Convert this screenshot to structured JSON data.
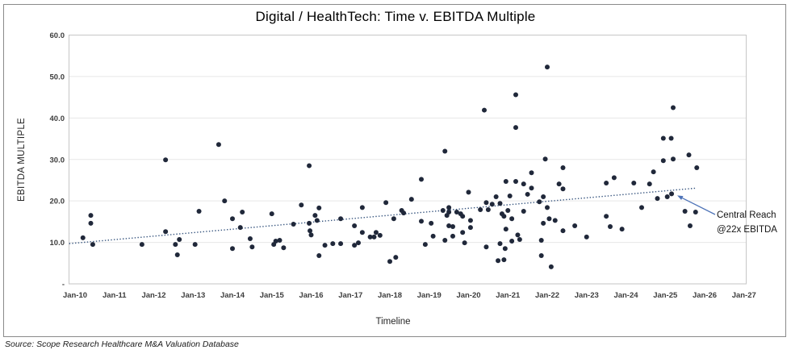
{
  "title": "Digital / HealthTech: Time v. EBITDA Multiple",
  "source": "Source: Scope Research Healthcare M&A Valuation Database",
  "chart_data": {
    "type": "scatter",
    "title": "Digital / HealthTech: Time v. EBITDA Multiple",
    "xlabel": "Timeline",
    "ylabel": "EBITDA MULTIPLE",
    "legend": "none",
    "grid": "horizontal",
    "x_ticks": [
      "Jan-10",
      "Jan-11",
      "Jan-12",
      "Jan-13",
      "Jan-14",
      "Jan-15",
      "Jan-16",
      "Jan-17",
      "Jan-18",
      "Jan-19",
      "Jan-20",
      "Jan-21",
      "Jan-22",
      "Jan-23",
      "Jan-24",
      "Jan-25",
      "Jan-26",
      "Jan-27"
    ],
    "y_ticks": [
      {
        "label": "60.0",
        "value": 60
      },
      {
        "label": "50.0",
        "value": 50
      },
      {
        "label": "40.0",
        "value": 40
      },
      {
        "label": "30.0",
        "value": 30
      },
      {
        "label": "20.0",
        "value": 20
      },
      {
        "label": "10.0",
        "value": 10
      },
      {
        "label": "-",
        "value": 0
      }
    ],
    "ylim": [
      0,
      60
    ],
    "xlim_years": [
      2009.83,
      2027.07
    ],
    "points": [
      [
        2010.2,
        11.1
      ],
      [
        2010.4,
        16.5
      ],
      [
        2010.4,
        14.6
      ],
      [
        2010.45,
        9.5
      ],
      [
        2011.7,
        9.5
      ],
      [
        2012.3,
        29.9
      ],
      [
        2012.3,
        12.6
      ],
      [
        2012.55,
        9.5
      ],
      [
        2012.6,
        7.0
      ],
      [
        2012.65,
        10.7
      ],
      [
        2013.05,
        9.5
      ],
      [
        2013.15,
        17.5
      ],
      [
        2013.65,
        33.6
      ],
      [
        2013.8,
        20.0
      ],
      [
        2014.0,
        15.7
      ],
      [
        2014.0,
        8.5
      ],
      [
        2014.2,
        13.6
      ],
      [
        2014.25,
        17.3
      ],
      [
        2014.45,
        10.9
      ],
      [
        2014.5,
        8.9
      ],
      [
        2015.0,
        16.9
      ],
      [
        2015.05,
        9.5
      ],
      [
        2015.1,
        10.3
      ],
      [
        2015.2,
        10.5
      ],
      [
        2015.3,
        8.7
      ],
      [
        2015.55,
        14.4
      ],
      [
        2015.75,
        19.0
      ],
      [
        2015.95,
        28.5
      ],
      [
        2015.95,
        14.6
      ],
      [
        2015.97,
        12.8
      ],
      [
        2016.0,
        11.8
      ],
      [
        2016.1,
        16.5
      ],
      [
        2016.15,
        15.3
      ],
      [
        2016.2,
        18.3
      ],
      [
        2016.2,
        6.8
      ],
      [
        2016.35,
        9.3
      ],
      [
        2016.55,
        9.7
      ],
      [
        2016.75,
        15.7
      ],
      [
        2016.75,
        9.7
      ],
      [
        2017.1,
        14.0
      ],
      [
        2017.1,
        9.3
      ],
      [
        2017.2,
        9.9
      ],
      [
        2017.3,
        18.4
      ],
      [
        2017.3,
        12.4
      ],
      [
        2017.5,
        11.3
      ],
      [
        2017.6,
        11.3
      ],
      [
        2017.65,
        12.4
      ],
      [
        2017.75,
        11.7
      ],
      [
        2017.9,
        19.6
      ],
      [
        2018.0,
        5.4
      ],
      [
        2018.1,
        15.7
      ],
      [
        2018.15,
        6.4
      ],
      [
        2018.3,
        17.7
      ],
      [
        2018.35,
        17.1
      ],
      [
        2018.55,
        20.4
      ],
      [
        2018.8,
        25.2
      ],
      [
        2018.8,
        15.1
      ],
      [
        2018.9,
        9.5
      ],
      [
        2019.05,
        14.6
      ],
      [
        2019.1,
        11.5
      ],
      [
        2019.35,
        17.7
      ],
      [
        2019.4,
        32.0
      ],
      [
        2019.4,
        10.5
      ],
      [
        2019.45,
        16.5
      ],
      [
        2019.5,
        18.4
      ],
      [
        2019.5,
        14.0
      ],
      [
        2019.5,
        17.3
      ],
      [
        2019.6,
        11.5
      ],
      [
        2019.6,
        13.8
      ],
      [
        2019.7,
        17.3
      ],
      [
        2019.8,
        16.9
      ],
      [
        2019.85,
        16.3
      ],
      [
        2019.85,
        12.4
      ],
      [
        2019.9,
        9.9
      ],
      [
        2020.0,
        22.1
      ],
      [
        2020.05,
        15.3
      ],
      [
        2020.05,
        13.6
      ],
      [
        2020.3,
        17.9
      ],
      [
        2020.4,
        41.9
      ],
      [
        2020.45,
        19.6
      ],
      [
        2020.45,
        8.9
      ],
      [
        2020.5,
        17.9
      ],
      [
        2020.6,
        19.2
      ],
      [
        2020.7,
        21.0
      ],
      [
        2020.75,
        5.6
      ],
      [
        2020.8,
        19.4
      ],
      [
        2020.8,
        9.7
      ],
      [
        2020.85,
        16.9
      ],
      [
        2020.9,
        16.3
      ],
      [
        2020.9,
        5.8
      ],
      [
        2020.93,
        8.5
      ],
      [
        2020.95,
        24.7
      ],
      [
        2020.95,
        13.2
      ],
      [
        2021.0,
        17.7
      ],
      [
        2021.05,
        21.2
      ],
      [
        2021.1,
        15.7
      ],
      [
        2021.1,
        10.3
      ],
      [
        2021.2,
        45.6
      ],
      [
        2021.2,
        37.7
      ],
      [
        2021.2,
        24.7
      ],
      [
        2021.25,
        11.8
      ],
      [
        2021.3,
        10.7
      ],
      [
        2021.4,
        24.1
      ],
      [
        2021.4,
        17.5
      ],
      [
        2021.5,
        21.6
      ],
      [
        2021.6,
        26.8
      ],
      [
        2021.6,
        23.1
      ],
      [
        2021.8,
        19.8
      ],
      [
        2021.85,
        10.5
      ],
      [
        2021.85,
        6.8
      ],
      [
        2021.9,
        21.0
      ],
      [
        2021.9,
        14.6
      ],
      [
        2021.95,
        30.1
      ],
      [
        2022.0,
        52.3
      ],
      [
        2022.0,
        18.4
      ],
      [
        2022.05,
        15.7
      ],
      [
        2022.1,
        4.1
      ],
      [
        2022.2,
        15.3
      ],
      [
        2022.3,
        24.1
      ],
      [
        2022.4,
        28.0
      ],
      [
        2022.4,
        22.9
      ],
      [
        2022.4,
        12.8
      ],
      [
        2022.7,
        14.0
      ],
      [
        2023.0,
        11.3
      ],
      [
        2023.5,
        24.3
      ],
      [
        2023.5,
        16.3
      ],
      [
        2023.6,
        13.8
      ],
      [
        2023.7,
        25.6
      ],
      [
        2023.9,
        13.2
      ],
      [
        2024.2,
        24.3
      ],
      [
        2024.4,
        18.4
      ],
      [
        2024.6,
        24.1
      ],
      [
        2024.7,
        27.0
      ],
      [
        2024.8,
        20.6
      ],
      [
        2024.95,
        35.1
      ],
      [
        2024.95,
        29.7
      ],
      [
        2025.05,
        21.0
      ],
      [
        2025.15,
        35.1
      ],
      [
        2025.16,
        21.7
      ],
      [
        2025.2,
        42.5
      ],
      [
        2025.2,
        30.1
      ],
      [
        2025.5,
        17.5
      ],
      [
        2025.6,
        31.1
      ],
      [
        2025.63,
        14.0
      ],
      [
        2025.77,
        17.3
      ],
      [
        2025.8,
        28.0
      ]
    ],
    "trendline": {
      "style": "dotted",
      "x1": 2009.85,
      "y1": 9.7,
      "x2": 2025.8,
      "y2": 23.1
    },
    "annotation": {
      "line1": "Central Reach",
      "line2": "@22x EBITDA",
      "target_point": [
        2025.16,
        21.7
      ]
    },
    "colors": {
      "point": "#20283a",
      "trend": "#36547e",
      "arrow": "#4f74b8",
      "grid": "#e7e7e7",
      "plot_border": "#c6c6c6",
      "tick_text": "#3d3d3d"
    }
  }
}
